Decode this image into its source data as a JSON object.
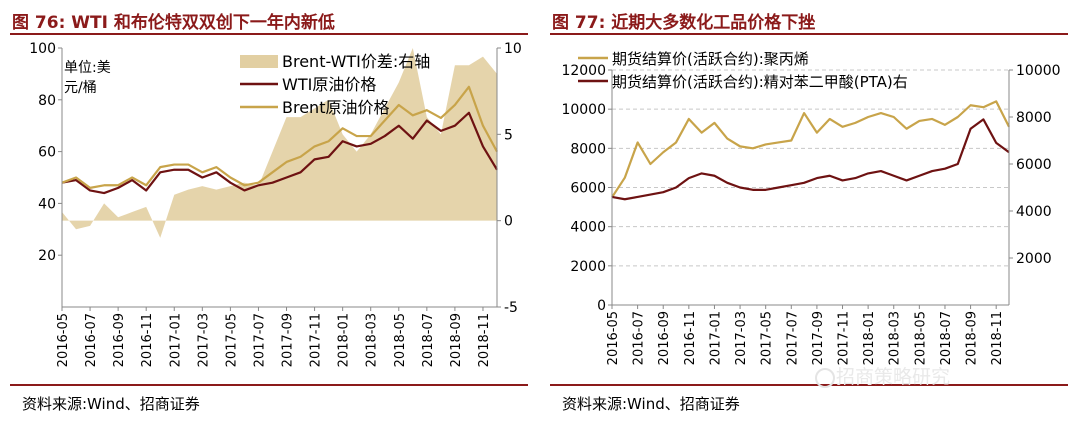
{
  "left": {
    "title": "图 76:  WTI 和布伦特双双创下一年内新低",
    "source": "资料来源:Wind、招商证券",
    "unit_label_1": "单位:美",
    "unit_label_2": "元/桶",
    "chart_data": {
      "type": "line",
      "title": "图 76:  WTI 和布伦特双双创下一年内新低",
      "x_tick_labels": [
        "2016-05",
        "2016-07",
        "2016-09",
        "2016-11",
        "2017-01",
        "2017-03",
        "2017-05",
        "2017-07",
        "2017-09",
        "2017-11",
        "2018-01",
        "2018-03",
        "2018-05",
        "2018-07",
        "2018-09",
        "2018-11"
      ],
      "y_left": {
        "min": 0,
        "max": 100,
        "ticks": [
          20,
          40,
          60,
          80,
          100
        ]
      },
      "y_right": {
        "min": -5,
        "max": 10,
        "ticks": [
          -5,
          0,
          5,
          10
        ]
      },
      "grid": false,
      "legend_position": "top-right",
      "x": [
        "2016-05",
        "2016-06",
        "2016-07",
        "2016-08",
        "2016-09",
        "2016-10",
        "2016-11",
        "2016-12",
        "2017-01",
        "2017-02",
        "2017-03",
        "2017-04",
        "2017-05",
        "2017-06",
        "2017-07",
        "2017-08",
        "2017-09",
        "2017-10",
        "2017-11",
        "2017-12",
        "2018-01",
        "2018-02",
        "2018-03",
        "2018-04",
        "2018-05",
        "2018-06",
        "2018-07",
        "2018-08",
        "2018-09",
        "2018-10",
        "2018-11",
        "2018-12"
      ],
      "series": [
        {
          "name": "Brent-WTI价差:右轴",
          "type": "area",
          "axis": "right",
          "color": "#e2cfa2",
          "values": [
            0.5,
            -0.5,
            -0.3,
            1.0,
            0.2,
            0.5,
            0.8,
            -1.0,
            1.5,
            1.8,
            2.0,
            1.8,
            2.0,
            2.2,
            2.0,
            4.0,
            6.0,
            6.0,
            6.5,
            7.0,
            5.0,
            4.0,
            5.0,
            6.5,
            8.0,
            10.0,
            6.0,
            5.0,
            9.0,
            9.0,
            9.5,
            8.5
          ]
        },
        {
          "name": "WTI原油价格",
          "type": "line",
          "axis": "left",
          "color": "#6e1212",
          "values": [
            48,
            49,
            45,
            44,
            46,
            49,
            45,
            52,
            53,
            53,
            50,
            52,
            48,
            45,
            47,
            48,
            50,
            52,
            57,
            58,
            64,
            62,
            63,
            66,
            70,
            65,
            72,
            68,
            70,
            75,
            62,
            53
          ]
        },
        {
          "name": "Brent原油价格",
          "type": "line",
          "axis": "left",
          "color": "#c8a44a",
          "values": [
            48,
            50,
            46,
            47,
            47,
            50,
            47,
            54,
            55,
            55,
            52,
            54,
            50,
            47,
            48,
            52,
            56,
            58,
            62,
            64,
            69,
            66,
            66,
            72,
            78,
            74,
            76,
            73,
            78,
            85,
            70,
            60
          ]
        }
      ]
    }
  },
  "right": {
    "title": "图 77:  近期大多数化工品价格下挫",
    "source": "资料来源:Wind、招商证券",
    "watermark": "招商策略研究",
    "chart_data": {
      "type": "line",
      "title": "图 77:  近期大多数化工品价格下挫",
      "x_tick_labels": [
        "2016-05",
        "2016-07",
        "2016-09",
        "2016-11",
        "2017-01",
        "2017-03",
        "2017-05",
        "2017-07",
        "2017-09",
        "2017-11",
        "2018-01",
        "2018-03",
        "2018-05",
        "2018-07",
        "2018-09",
        "2018-11"
      ],
      "y_left": {
        "min": 0,
        "max": 12000,
        "ticks": [
          0,
          2000,
          4000,
          6000,
          8000,
          10000,
          12000
        ]
      },
      "y_right": {
        "min": 0,
        "max": 10000,
        "ticks": [
          2000,
          4000,
          6000,
          8000,
          10000
        ]
      },
      "grid": true,
      "legend_position": "top",
      "x": [
        "2016-05",
        "2016-06",
        "2016-07",
        "2016-08",
        "2016-09",
        "2016-10",
        "2016-11",
        "2016-12",
        "2017-01",
        "2017-02",
        "2017-03",
        "2017-04",
        "2017-05",
        "2017-06",
        "2017-07",
        "2017-08",
        "2017-09",
        "2017-10",
        "2017-11",
        "2017-12",
        "2018-01",
        "2018-02",
        "2018-03",
        "2018-04",
        "2018-05",
        "2018-06",
        "2018-07",
        "2018-08",
        "2018-09",
        "2018-10",
        "2018-11",
        "2018-12"
      ],
      "series": [
        {
          "name": "期货结算价(活跃合约):聚丙烯",
          "type": "line",
          "axis": "left",
          "color": "#c8a44a",
          "values": [
            5500,
            6500,
            8300,
            7200,
            7800,
            8300,
            9500,
            8800,
            9300,
            8500,
            8100,
            8000,
            8200,
            8300,
            8400,
            9800,
            8800,
            9500,
            9100,
            9300,
            9600,
            9800,
            9600,
            9000,
            9400,
            9500,
            9200,
            9600,
            10200,
            10100,
            10400,
            9100
          ]
        },
        {
          "name": "期货结算价(活跃合约):精对苯二甲酸(PTA)右",
          "type": "line",
          "axis": "right",
          "color": "#6e1212",
          "values": [
            4600,
            4500,
            4600,
            4700,
            4800,
            5000,
            5400,
            5600,
            5500,
            5200,
            5000,
            4900,
            4900,
            5000,
            5100,
            5200,
            5400,
            5500,
            5300,
            5400,
            5600,
            5700,
            5500,
            5300,
            5500,
            5700,
            5800,
            6000,
            7500,
            7900,
            6900,
            6500
          ]
        }
      ]
    }
  }
}
